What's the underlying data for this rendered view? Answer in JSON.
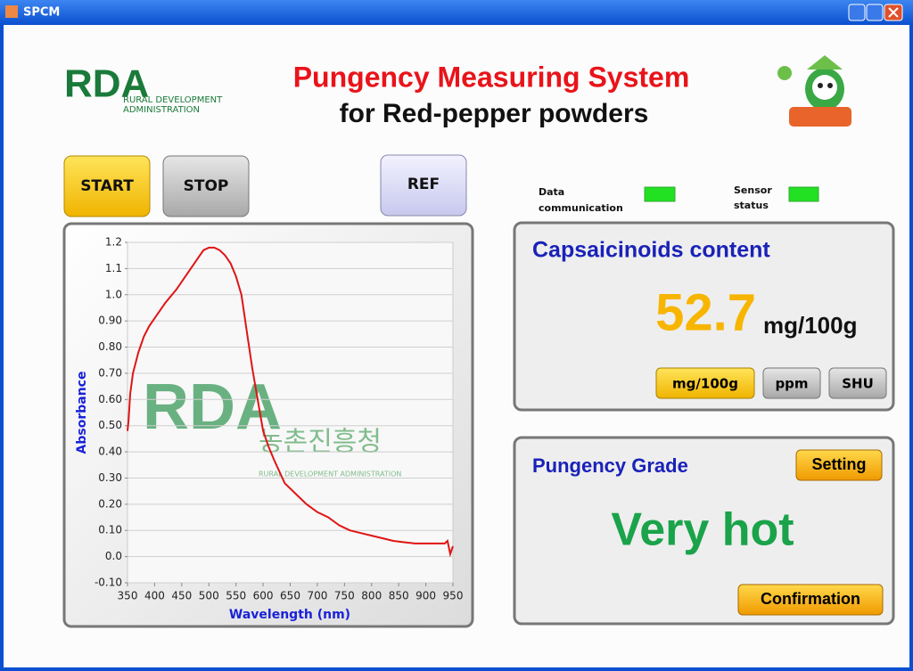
{
  "window": {
    "title": "SPCM"
  },
  "header": {
    "logo": {
      "mark": "RDA",
      "line1": "RURAL DEVELOPMENT",
      "line2": "ADMINISTRATION"
    },
    "title": "Pungency Measuring System",
    "subtitle": "for Red-pepper powders"
  },
  "controls": {
    "start": "START",
    "stop": "STOP",
    "ref": "REF"
  },
  "status": {
    "data_line1": "Data",
    "data_line2": "communication",
    "sensor_line1": "Sensor",
    "sensor_line2": "status"
  },
  "capsaicinoids": {
    "title": "Capsaicinoids content",
    "value": 52.7,
    "unit": "mg/100g",
    "units": [
      "mg/100g",
      "ppm",
      "SHU"
    ]
  },
  "grade": {
    "title": "Pungency Grade",
    "setting": "Setting",
    "value": "Very hot",
    "confirm": "Confirmation"
  },
  "watermark": {
    "mark": "RDA",
    "korean": "농촌진흥청",
    "english": "RURAL DEVELOPMENT ADMINISTRATION"
  },
  "chart_data": {
    "type": "line",
    "xlabel": "Wavelength (nm)",
    "ylabel": "Absorbance",
    "x": [
      350,
      352,
      355,
      360,
      370,
      380,
      390,
      400,
      420,
      440,
      460,
      480,
      490,
      500,
      510,
      520,
      530,
      540,
      550,
      560,
      570,
      580,
      590,
      600,
      610,
      620,
      640,
      660,
      680,
      700,
      720,
      740,
      760,
      780,
      800,
      820,
      840,
      860,
      880,
      900,
      920,
      935,
      940,
      945,
      950
    ],
    "series": [
      {
        "name": "Absorbance",
        "color": "#e01414",
        "values": [
          0.48,
          0.52,
          0.62,
          0.7,
          0.78,
          0.84,
          0.88,
          0.91,
          0.97,
          1.02,
          1.08,
          1.14,
          1.17,
          1.18,
          1.18,
          1.17,
          1.15,
          1.12,
          1.07,
          1.0,
          0.86,
          0.72,
          0.6,
          0.48,
          0.42,
          0.37,
          0.28,
          0.24,
          0.2,
          0.17,
          0.15,
          0.12,
          0.1,
          0.09,
          0.08,
          0.07,
          0.06,
          0.055,
          0.05,
          0.05,
          0.05,
          0.05,
          0.06,
          0.01,
          0.04
        ]
      }
    ],
    "xlim": [
      350,
      950
    ],
    "xticks": [
      350,
      400,
      450,
      500,
      550,
      600,
      650,
      700,
      750,
      800,
      850,
      900,
      950
    ],
    "ylim": [
      -0.1,
      1.2
    ],
    "yticks": [
      {
        "value": -0.1,
        "label": "-0.10"
      },
      {
        "value": 0,
        "label": "0.0"
      },
      {
        "value": 0.1,
        "label": "0.10"
      },
      {
        "value": 0.2,
        "label": "0.20"
      },
      {
        "value": 0.3,
        "label": "0.30"
      },
      {
        "value": 0.4,
        "label": "0.40"
      },
      {
        "value": 0.5,
        "label": "0.50"
      },
      {
        "value": 0.6,
        "label": "0.60"
      },
      {
        "value": 0.7,
        "label": "0.70"
      },
      {
        "value": 0.8,
        "label": "0.80"
      },
      {
        "value": 0.9,
        "label": "0.90"
      },
      {
        "value": 1,
        "label": "1.0"
      },
      1.1,
      1.2
    ],
    "grid": true
  }
}
